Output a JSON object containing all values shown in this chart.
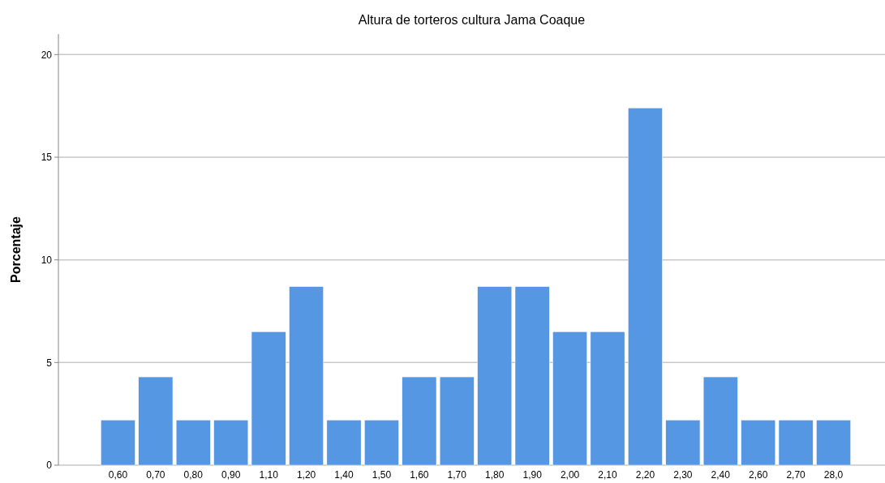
{
  "chart_data": {
    "type": "bar",
    "title": "Altura de torteros cultura Jama Coaque",
    "ylabel": "Porcentaje",
    "categories": [
      "0,60",
      "0,70",
      "0,80",
      "0,90",
      "1,10",
      "1,20",
      "1,40",
      "1,50",
      "1,60",
      "1,70",
      "1,80",
      "1,90",
      "2,00",
      "2,10",
      "2,20",
      "2,30",
      "2,40",
      "2,60",
      "2,70",
      "28,0"
    ],
    "values": [
      2.2,
      4.3,
      2.2,
      2.2,
      6.5,
      8.7,
      2.2,
      2.2,
      4.3,
      4.3,
      8.7,
      8.7,
      6.5,
      6.5,
      17.4,
      2.2,
      4.3,
      2.2,
      2.2,
      2.2
    ],
    "color": "#5597e3",
    "ylim": [
      0,
      21
    ],
    "yticks": [
      0,
      5,
      10,
      15,
      20
    ],
    "grid": "y"
  }
}
